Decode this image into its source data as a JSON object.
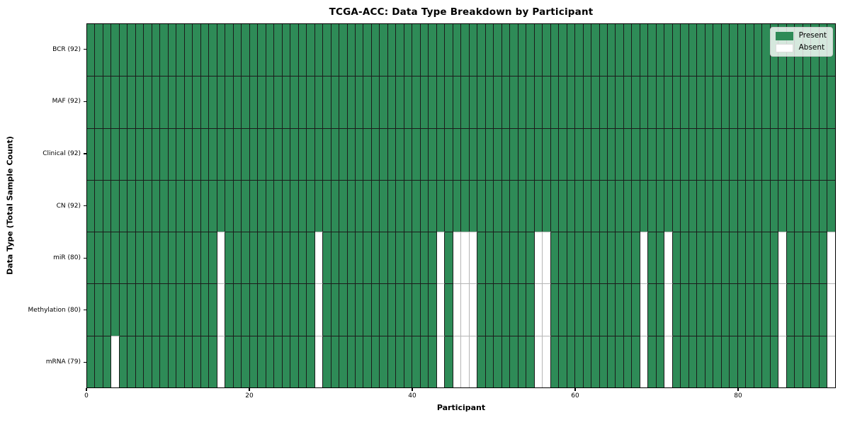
{
  "chart_data": {
    "type": "heatmap",
    "title": "TCGA-ACC: Data Type Breakdown by Participant",
    "xlabel": "Participant",
    "ylabel": "Data Type (Total Sample Count)",
    "x_ticks": [
      0,
      20,
      40,
      60,
      80
    ],
    "x_range": [
      0,
      92
    ],
    "n_participants": 92,
    "grid": true,
    "legend_position": "upper right",
    "legend": [
      {
        "label": "Present",
        "color": "#2e8b57"
      },
      {
        "label": "Absent",
        "color": "#ffffff"
      }
    ],
    "colors": {
      "present": "#2e8b57",
      "absent": "#ffffff",
      "grid_dark": "#1b1b1b",
      "grid_light": "#b5b5b5"
    },
    "rows": [
      {
        "label": "BCR (92)",
        "total": 92,
        "absent": []
      },
      {
        "label": "MAF (92)",
        "total": 92,
        "absent": []
      },
      {
        "label": "Clinical (92)",
        "total": 92,
        "absent": []
      },
      {
        "label": "CN (92)",
        "total": 92,
        "absent": []
      },
      {
        "label": "miR (80)",
        "total": 80,
        "absent": [
          16,
          28,
          43,
          45,
          46,
          47,
          55,
          56,
          68,
          71,
          85,
          91
        ]
      },
      {
        "label": "Methylation (80)",
        "total": 80,
        "absent": [
          16,
          28,
          43,
          45,
          46,
          47,
          55,
          56,
          68,
          71,
          85,
          91
        ]
      },
      {
        "label": "mRNA (79)",
        "total": 79,
        "absent": [
          3,
          16,
          28,
          43,
          45,
          46,
          47,
          55,
          56,
          68,
          71,
          85,
          91
        ]
      }
    ]
  }
}
